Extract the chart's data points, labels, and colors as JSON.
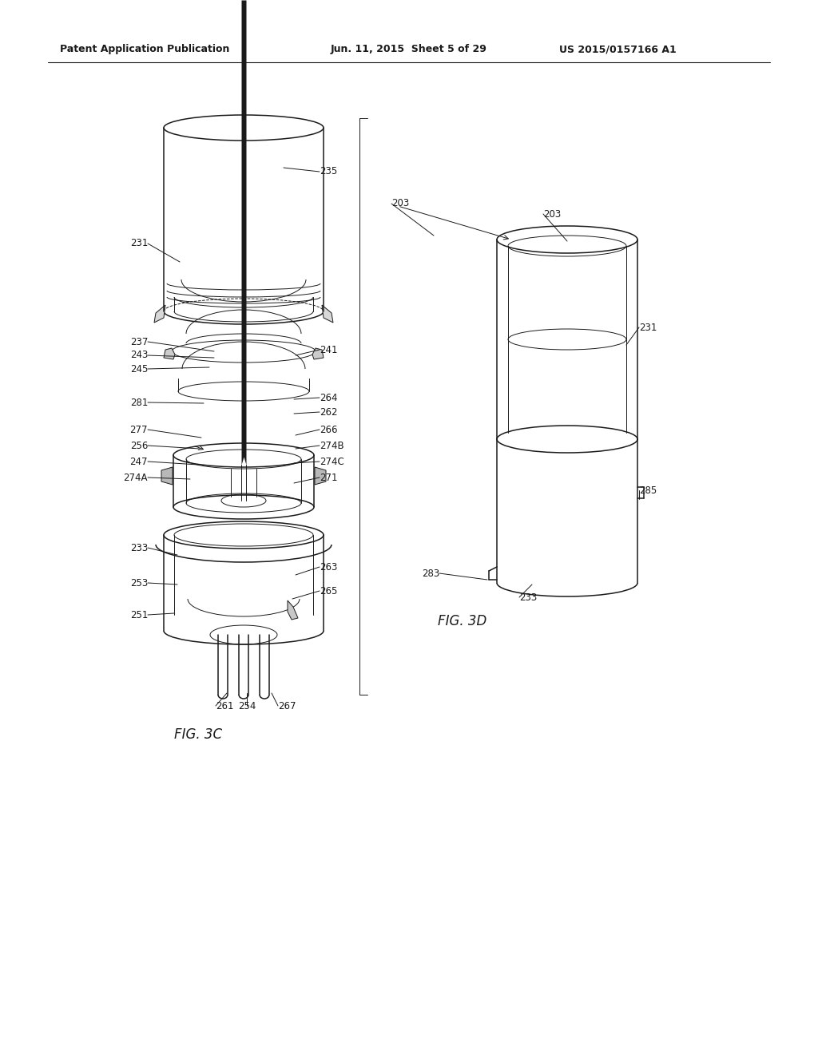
{
  "background_color": "#ffffff",
  "header_left": "Patent Application Publication",
  "header_center": "Jun. 11, 2015  Sheet 5 of 29",
  "header_right": "US 2015/0157166 A1",
  "fig3c_label": "FIG. 3C",
  "fig3d_label": "FIG. 3D",
  "line_color": "#1a1a1a",
  "text_color": "#1a1a1a",
  "label_fontsize": 8.5,
  "header_fontsize": 9,
  "fig_width": 1024,
  "fig_height": 1320
}
